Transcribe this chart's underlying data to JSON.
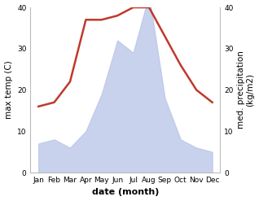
{
  "months": [
    "Jan",
    "Feb",
    "Mar",
    "Apr",
    "May",
    "Jun",
    "Jul",
    "Aug",
    "Sep",
    "Oct",
    "Nov",
    "Dec"
  ],
  "temperature": [
    16,
    17,
    22,
    37,
    37,
    38,
    40,
    40,
    33,
    26,
    20,
    17
  ],
  "precipitation": [
    7,
    8,
    6,
    10,
    19,
    32,
    29,
    43,
    18,
    8,
    6,
    5
  ],
  "temp_color": "#c0392b",
  "precip_fill_color": "#b8c4e8",
  "xlabel": "date (month)",
  "ylabel_left": "max temp (C)",
  "ylabel_right": "med. precipitation\n(kg/m2)",
  "ylim_left": [
    0,
    40
  ],
  "ylim_right": [
    0,
    40
  ],
  "yticks_left": [
    0,
    10,
    20,
    30,
    40
  ],
  "yticks_right": [
    0,
    10,
    20,
    30,
    40
  ],
  "background_color": "#ffffff",
  "spine_color": "#bbbbbb",
  "temp_linewidth": 1.8,
  "xlabel_fontsize": 8,
  "ylabel_fontsize": 7.5,
  "tick_fontsize": 6.5
}
